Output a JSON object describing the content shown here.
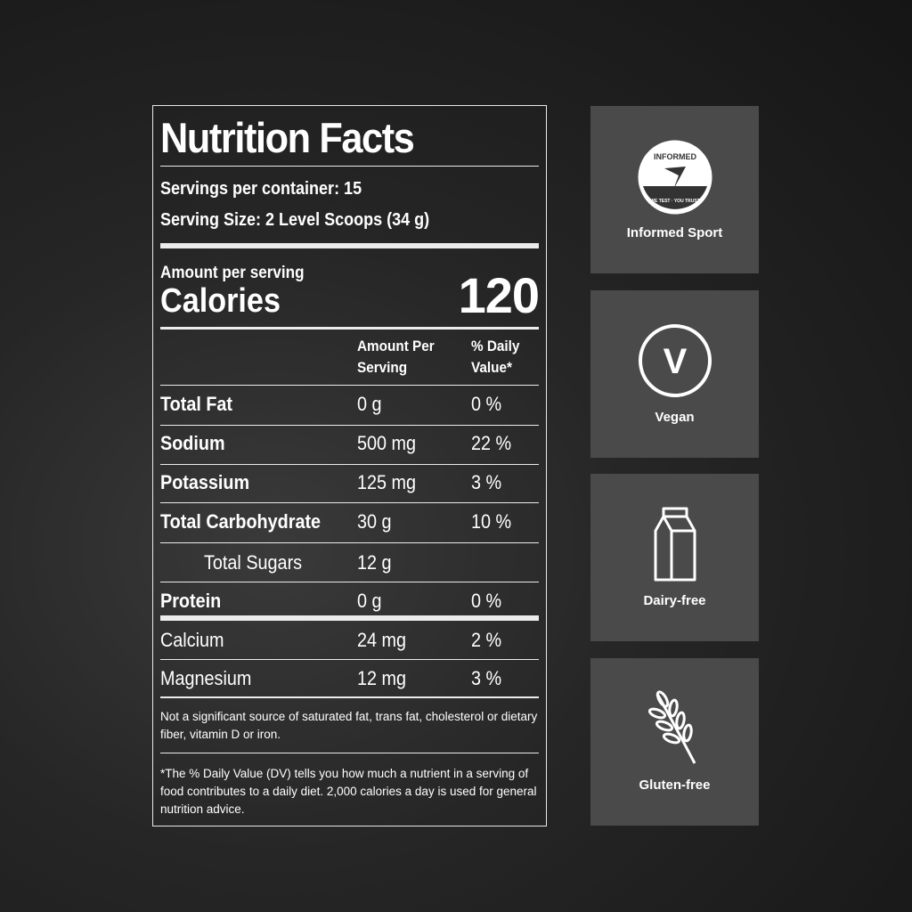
{
  "label": {
    "title": "Nutrition Facts",
    "servings_per_container": "Servings per container: 15",
    "serving_size": "Serving Size: 2 Level Scoops (34 g)",
    "amount_per_serving": "Amount per serving",
    "calories_label": "Calories",
    "calories_value": "120",
    "col_amount": [
      "Amount Per",
      "Serving"
    ],
    "col_dv": [
      "% Daily",
      "Value*"
    ],
    "rows": [
      {
        "name": "Total Fat",
        "amount": "0 g",
        "dv": "0 %"
      },
      {
        "name": "Sodium",
        "amount": "500 mg",
        "dv": "22 %"
      },
      {
        "name": "Potassium",
        "amount": "125 mg",
        "dv": "3 %"
      },
      {
        "name": "Total Carbohydrate",
        "amount": "30 g",
        "dv": "10 %"
      },
      {
        "name": "Total Sugars",
        "amount": "12 g",
        "dv": ""
      },
      {
        "name": "Protein",
        "amount": "0 g",
        "dv": "0 %"
      },
      {
        "name": "Calcium",
        "amount": "24 mg",
        "dv": "2 %"
      },
      {
        "name": "Magnesium",
        "amount": "12 mg",
        "dv": "3 %"
      }
    ],
    "note1": "Not a significant source of saturated fat, trans fat, cholesterol or dietary fiber, vitamin D or iron.",
    "note2": "*The % Daily Value (DV) tells you how much a nutrient in a serving of food contributes to a daily diet. 2,000 calories a day is used for general nutrition advice."
  },
  "badges": [
    {
      "label": "Informed Sport",
      "icon": "informed-sport-logo",
      "logo_text": [
        "INFORMED",
        "WE TEST · YOU TRUST"
      ]
    },
    {
      "label": "Vegan",
      "icon": "vegan-v-icon",
      "glyph": "V"
    },
    {
      "label": "Dairy-free",
      "icon": "milk-carton-icon"
    },
    {
      "label": "Gluten-free",
      "icon": "wheat-icon"
    }
  ]
}
